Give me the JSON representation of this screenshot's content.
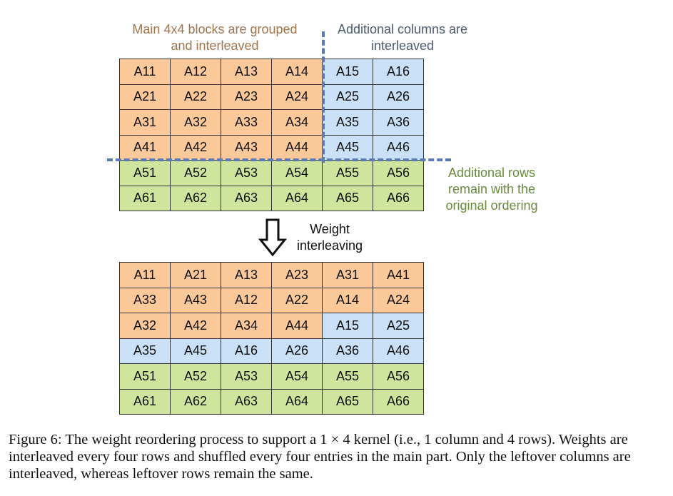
{
  "labels": {
    "main_blocks_line1": "Main 4x4 blocks are grouped",
    "main_blocks_line2": "and interleaved",
    "additional_cols_line1": "Additional columns are",
    "additional_cols_line2": "interleaved",
    "additional_rows_line1": "Additional rows",
    "additional_rows_line2": "remain with the",
    "additional_rows_line3": "original ordering",
    "arrow_line1": "Weight",
    "arrow_line2": "interleaving"
  },
  "colors": {
    "main": "#fbc89a",
    "extra_cols": "#c9e0f6",
    "extra_rows": "#cfe59d",
    "dash": "#5d7ab6"
  },
  "top_matrix": {
    "rows": [
      [
        {
          "v": "A11",
          "c": "o"
        },
        {
          "v": "A12",
          "c": "o"
        },
        {
          "v": "A13",
          "c": "o"
        },
        {
          "v": "A14",
          "c": "o"
        },
        {
          "v": "A15",
          "c": "b"
        },
        {
          "v": "A16",
          "c": "b"
        }
      ],
      [
        {
          "v": "A21",
          "c": "o"
        },
        {
          "v": "A22",
          "c": "o"
        },
        {
          "v": "A23",
          "c": "o"
        },
        {
          "v": "A24",
          "c": "o"
        },
        {
          "v": "A25",
          "c": "b"
        },
        {
          "v": "A26",
          "c": "b"
        }
      ],
      [
        {
          "v": "A31",
          "c": "o"
        },
        {
          "v": "A32",
          "c": "o"
        },
        {
          "v": "A33",
          "c": "o"
        },
        {
          "v": "A34",
          "c": "o"
        },
        {
          "v": "A35",
          "c": "b"
        },
        {
          "v": "A36",
          "c": "b"
        }
      ],
      [
        {
          "v": "A41",
          "c": "o"
        },
        {
          "v": "A42",
          "c": "o"
        },
        {
          "v": "A43",
          "c": "o"
        },
        {
          "v": "A44",
          "c": "o"
        },
        {
          "v": "A45",
          "c": "b"
        },
        {
          "v": "A46",
          "c": "b"
        }
      ],
      [
        {
          "v": "A51",
          "c": "g"
        },
        {
          "v": "A52",
          "c": "g"
        },
        {
          "v": "A53",
          "c": "g"
        },
        {
          "v": "A54",
          "c": "g"
        },
        {
          "v": "A55",
          "c": "g"
        },
        {
          "v": "A56",
          "c": "g"
        }
      ],
      [
        {
          "v": "A61",
          "c": "g"
        },
        {
          "v": "A62",
          "c": "g"
        },
        {
          "v": "A63",
          "c": "g"
        },
        {
          "v": "A64",
          "c": "g"
        },
        {
          "v": "A65",
          "c": "g"
        },
        {
          "v": "A66",
          "c": "g"
        }
      ]
    ]
  },
  "bottom_matrix": {
    "rows": [
      [
        {
          "v": "A11",
          "c": "o"
        },
        {
          "v": "A21",
          "c": "o"
        },
        {
          "v": "A13",
          "c": "o"
        },
        {
          "v": "A23",
          "c": "o"
        },
        {
          "v": "A31",
          "c": "o"
        },
        {
          "v": "A41",
          "c": "o"
        }
      ],
      [
        {
          "v": "A33",
          "c": "o"
        },
        {
          "v": "A43",
          "c": "o"
        },
        {
          "v": "A12",
          "c": "o"
        },
        {
          "v": "A22",
          "c": "o"
        },
        {
          "v": "A14",
          "c": "o"
        },
        {
          "v": "A24",
          "c": "o"
        }
      ],
      [
        {
          "v": "A32",
          "c": "o"
        },
        {
          "v": "A42",
          "c": "o"
        },
        {
          "v": "A34",
          "c": "o"
        },
        {
          "v": "A44",
          "c": "o"
        },
        {
          "v": "A15",
          "c": "b"
        },
        {
          "v": "A25",
          "c": "b"
        }
      ],
      [
        {
          "v": "A35",
          "c": "b"
        },
        {
          "v": "A45",
          "c": "b"
        },
        {
          "v": "A16",
          "c": "b"
        },
        {
          "v": "A26",
          "c": "b"
        },
        {
          "v": "A36",
          "c": "b"
        },
        {
          "v": "A46",
          "c": "b"
        }
      ],
      [
        {
          "v": "A51",
          "c": "g"
        },
        {
          "v": "A52",
          "c": "g"
        },
        {
          "v": "A53",
          "c": "g"
        },
        {
          "v": "A54",
          "c": "g"
        },
        {
          "v": "A55",
          "c": "g"
        },
        {
          "v": "A56",
          "c": "g"
        }
      ],
      [
        {
          "v": "A61",
          "c": "g"
        },
        {
          "v": "A62",
          "c": "g"
        },
        {
          "v": "A63",
          "c": "g"
        },
        {
          "v": "A64",
          "c": "g"
        },
        {
          "v": "A65",
          "c": "g"
        },
        {
          "v": "A66",
          "c": "g"
        }
      ]
    ]
  },
  "caption": "Figure 6: The weight reordering process to support a 1 × 4 kernel (i.e., 1 column and 4 rows). Weights are interleaved every four rows and shuffled every four entries in the main part. Only the leftover columns are interleaved, whereas leftover rows remain the same."
}
